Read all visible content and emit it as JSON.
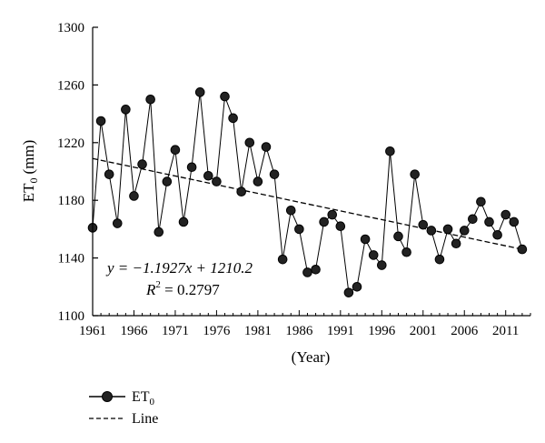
{
  "chart_data": {
    "type": "line",
    "xlabel": "(Year)",
    "ylabel_main": "ET",
    "ylabel_sub": "0",
    "ylabel_unit": "(mm)",
    "xlim": [
      1961,
      2014
    ],
    "ylim": [
      1100,
      1300
    ],
    "x_ticks": [
      1961,
      1966,
      1971,
      1976,
      1981,
      1986,
      1991,
      1996,
      2001,
      2006,
      2011
    ],
    "y_ticks": [
      1100,
      1140,
      1180,
      1220,
      1260,
      1300
    ],
    "grid": false,
    "legend_position": "bottom-left",
    "series": [
      {
        "legend_main": "ET",
        "legend_sub": "0",
        "style": "line-with-markers",
        "color": "#000000",
        "x": [
          1961,
          1962,
          1963,
          1964,
          1965,
          1966,
          1967,
          1968,
          1969,
          1970,
          1971,
          1972,
          1973,
          1974,
          1975,
          1976,
          1977,
          1978,
          1979,
          1980,
          1981,
          1982,
          1983,
          1984,
          1985,
          1986,
          1987,
          1988,
          1989,
          1990,
          1991,
          1992,
          1993,
          1994,
          1995,
          1996,
          1997,
          1998,
          1999,
          2000,
          2001,
          2002,
          2003,
          2004,
          2005,
          2006,
          2007,
          2008,
          2009,
          2010,
          2011,
          2012,
          2013
        ],
        "y": [
          1161,
          1235,
          1198,
          1164,
          1243,
          1183,
          1205,
          1250,
          1158,
          1193,
          1215,
          1165,
          1203,
          1255,
          1197,
          1193,
          1252,
          1237,
          1186,
          1220,
          1193,
          1217,
          1198,
          1139,
          1173,
          1160,
          1130,
          1132,
          1165,
          1170,
          1162,
          1116,
          1120,
          1153,
          1142,
          1135,
          1214,
          1155,
          1144,
          1198,
          1163,
          1159,
          1139,
          1160,
          1150,
          1159,
          1167,
          1179,
          1165,
          1156,
          1170,
          1165,
          1146
        ]
      },
      {
        "legend_main": "Line",
        "style": "dashed",
        "color": "#000000",
        "x": [
          1961,
          2013
        ],
        "y": [
          1209.0,
          1146.0
        ]
      }
    ],
    "equation": "y = −1.1927x + 1210.2",
    "r2_label": "R",
    "r2_exp": "2",
    "r2_value": " = 0.2797"
  }
}
